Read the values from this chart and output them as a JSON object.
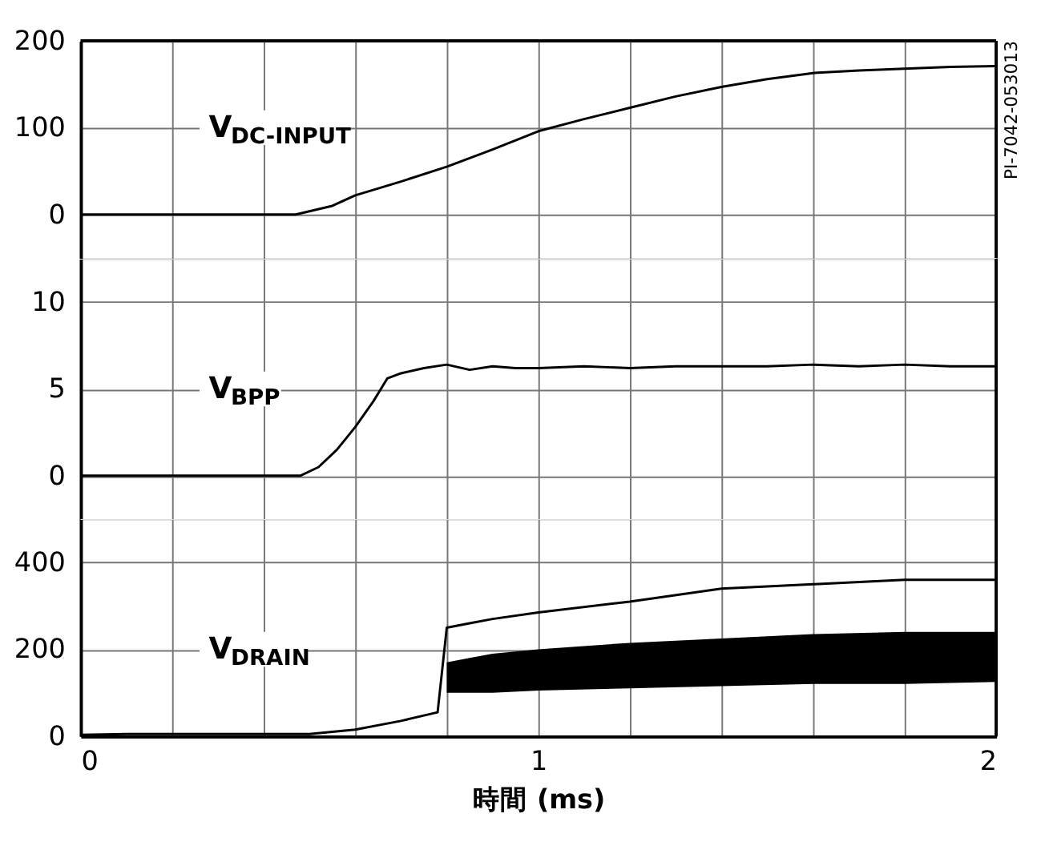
{
  "chart_data": [
    {
      "type": "line",
      "xlim": [
        0,
        2
      ],
      "xticks": [
        0,
        {
          "value": 0.2,
          "label": null
        },
        {
          "value": 0.4,
          "label": null
        },
        {
          "value": 0.6,
          "label": null
        },
        {
          "value": 0.8,
          "label": null
        },
        1,
        {
          "value": 1.2,
          "label": null
        },
        {
          "value": 1.4,
          "label": null
        },
        {
          "value": 1.6,
          "label": null
        },
        {
          "value": 1.8,
          "label": null
        },
        2
      ],
      "ylim": [
        -50,
        200
      ],
      "yticks": [
        0,
        100,
        200
      ],
      "grid": true,
      "tick_labels": "y",
      "annotations": [
        "PI-7042-053013"
      ],
      "series": [
        {
          "name": "V$_{DC-INPUT}$",
          "color": "#000000",
          "x": [
            0,
            0.2,
            0.4,
            0.47,
            0.55,
            0.6,
            0.7,
            0.8,
            0.9,
            1.0,
            1.1,
            1.2,
            1.3,
            1.4,
            1.5,
            1.6,
            1.7,
            1.8,
            1.9,
            2.0
          ],
          "values": [
            0,
            0,
            0,
            0,
            10,
            22,
            38,
            55,
            75,
            96,
            110,
            123,
            136,
            147,
            156,
            163,
            166,
            168,
            170,
            171
          ]
        }
      ]
    },
    {
      "type": "line",
      "xlim": [
        0,
        2
      ],
      "xticks": [
        0,
        {
          "value": 0.2,
          "label": null
        },
        {
          "value": 0.4,
          "label": null
        },
        {
          "value": 0.6,
          "label": null
        },
        {
          "value": 0.8,
          "label": null
        },
        1,
        {
          "value": 1.2,
          "label": null
        },
        {
          "value": 1.4,
          "label": null
        },
        {
          "value": 1.6,
          "label": null
        },
        {
          "value": 1.8,
          "label": null
        },
        2
      ],
      "ylim": [
        -2.5,
        12.5
      ],
      "yticks": [
        0,
        5,
        10
      ],
      "grid": true,
      "tick_labels": "y",
      "series": [
        {
          "name": "V$_{BPP}$",
          "color": "#000000",
          "x": [
            0,
            0.2,
            0.4,
            0.48,
            0.52,
            0.56,
            0.6,
            0.64,
            0.67,
            0.7,
            0.75,
            0.8,
            0.85,
            0.9,
            0.95,
            1.0,
            1.1,
            1.2,
            1.3,
            1.4,
            1.5,
            1.6,
            1.7,
            1.8,
            1.9,
            2.0
          ],
          "values": [
            0,
            0,
            0,
            0,
            0.5,
            1.5,
            2.8,
            4.3,
            5.6,
            5.9,
            6.2,
            6.4,
            6.1,
            6.3,
            6.2,
            6.2,
            6.3,
            6.2,
            6.3,
            6.3,
            6.3,
            6.4,
            6.3,
            6.4,
            6.3,
            6.3
          ]
        }
      ]
    },
    {
      "type": "line",
      "xlim": [
        0,
        2
      ],
      "xticks": [
        0,
        {
          "value": 0.2,
          "label": null
        },
        {
          "value": 0.4,
          "label": null
        },
        {
          "value": 0.6,
          "label": null
        },
        {
          "value": 0.8,
          "label": null
        },
        1,
        {
          "value": 1.2,
          "label": null
        },
        {
          "value": 1.4,
          "label": null
        },
        {
          "value": 1.6,
          "label": null
        },
        {
          "value": 1.8,
          "label": null
        },
        2
      ],
      "ylim": [
        0,
        500
      ],
      "yticks": [
        0,
        200,
        400
      ],
      "grid": true,
      "xlabel": "時間 (ms)",
      "series": [
        {
          "name": "V$_{DRAIN}$",
          "color": "#000000",
          "x": [
            0,
            0.1,
            0.2,
            0.3,
            0.4,
            0.5,
            0.6,
            0.7,
            0.78,
            0.8,
            0.85,
            0.9,
            1.0,
            1.2,
            1.4,
            1.6,
            1.8,
            2.0
          ],
          "values": [
            3,
            5,
            5,
            5,
            5,
            5,
            15,
            35,
            55,
            250,
            260,
            270,
            285,
            310,
            340,
            350,
            360,
            360
          ],
          "lower": [
            null,
            null,
            null,
            null,
            null,
            null,
            null,
            null,
            null,
            100,
            100,
            100,
            105,
            110,
            115,
            120,
            120,
            125
          ],
          "upper": [
            null,
            null,
            null,
            null,
            null,
            null,
            null,
            null,
            null,
            170,
            180,
            190,
            200,
            215,
            225,
            235,
            240,
            240
          ]
        }
      ]
    }
  ]
}
